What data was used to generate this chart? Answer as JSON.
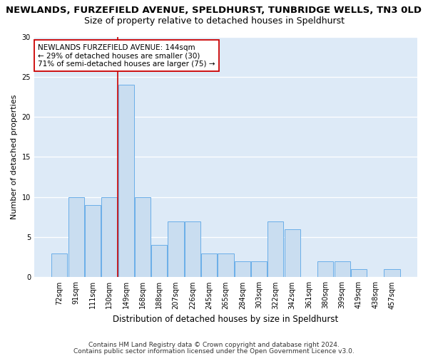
{
  "title": "NEWLANDS, FURZEFIELD AVENUE, SPELDHURST, TUNBRIDGE WELLS, TN3 0LD",
  "subtitle": "Size of property relative to detached houses in Speldhurst",
  "xlabel": "Distribution of detached houses by size in Speldhurst",
  "ylabel": "Number of detached properties",
  "categories": [
    "72sqm",
    "91sqm",
    "111sqm",
    "130sqm",
    "149sqm",
    "168sqm",
    "188sqm",
    "207sqm",
    "226sqm",
    "245sqm",
    "265sqm",
    "284sqm",
    "303sqm",
    "322sqm",
    "342sqm",
    "361sqm",
    "380sqm",
    "399sqm",
    "419sqm",
    "438sqm",
    "457sqm"
  ],
  "values": [
    3,
    10,
    9,
    10,
    24,
    10,
    4,
    7,
    7,
    3,
    3,
    2,
    2,
    7,
    6,
    0,
    2,
    2,
    1,
    0,
    1
  ],
  "bar_color": "#c9ddf0",
  "bar_edge_color": "#6aaee8",
  "bg_color": "#ddeaf7",
  "plot_bg": "#ddeaf7",
  "fig_bg": "#ffffff",
  "grid_color": "#ffffff",
  "vline_x": 3.5,
  "vline_color": "#cc0000",
  "annotation_text": "NEWLANDS FURZEFIELD AVENUE: 144sqm\n← 29% of detached houses are smaller (30)\n71% of semi-detached houses are larger (75) →",
  "annotation_box_color": "#ffffff",
  "annotation_box_edge": "#cc0000",
  "ylim": [
    0,
    30
  ],
  "yticks": [
    0,
    5,
    10,
    15,
    20,
    25,
    30
  ],
  "footer1": "Contains HM Land Registry data © Crown copyright and database right 2024.",
  "footer2": "Contains public sector information licensed under the Open Government Licence v3.0.",
  "title_fontsize": 9.5,
  "subtitle_fontsize": 9,
  "xlabel_fontsize": 8.5,
  "ylabel_fontsize": 8,
  "tick_fontsize": 7,
  "annotation_fontsize": 7.5,
  "footer_fontsize": 6.5
}
